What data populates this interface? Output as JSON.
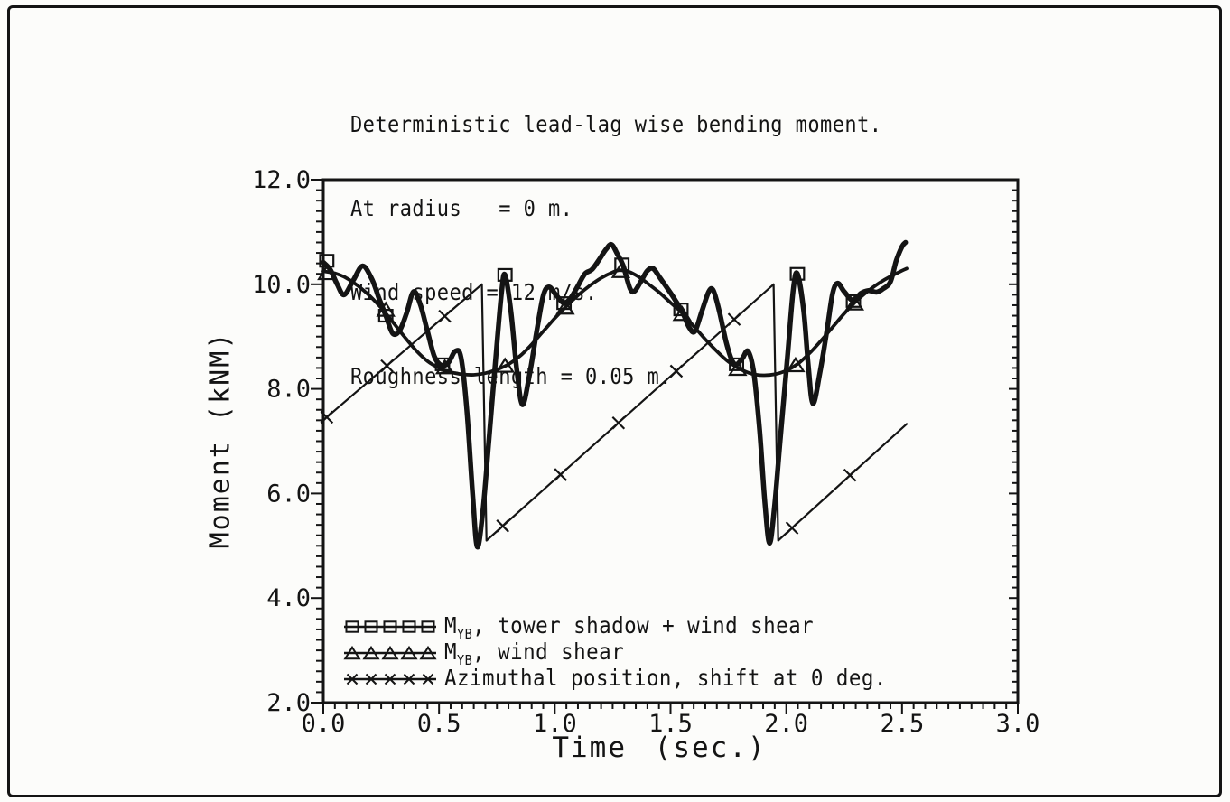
{
  "figure": {
    "ink_color": "#141414",
    "background": "#fcfcfa",
    "title_lines": [
      "Deterministic lead-lag wise bending moment.",
      "At radius   = 0 m.",
      "Wind speed = 12 m/s.",
      "Roughness length = 0.05 m."
    ]
  },
  "legend": {
    "entries": [
      {
        "marker": "square",
        "prefix": "M",
        "sub": "YB",
        "rest": ", tower shadow + wind shear"
      },
      {
        "marker": "triangle",
        "prefix": "M",
        "sub": "YB",
        "rest": ", wind shear"
      },
      {
        "marker": "x",
        "prefix": "",
        "sub": "",
        "rest": "Azimuthal position, shift at 0 deg."
      }
    ]
  },
  "chart_data": {
    "type": "line",
    "title": "Deterministic lead-lag wise bending moment.",
    "xlabel": "Time (sec.)",
    "ylabel": "Moment (kNM)",
    "xlim": [
      0.0,
      3.0
    ],
    "ylim": [
      2.0,
      12.0
    ],
    "x_major_ticks": [
      "0.0",
      "0.5",
      "1.0",
      "1.5",
      "2.0",
      "2.5",
      "3.0"
    ],
    "x_minor_step": 0.05,
    "y_major_ticks": [
      "2.0",
      "4.0",
      "6.0",
      "8.0",
      "10.0",
      "12.0"
    ],
    "y_minor_step": 0.2,
    "grid": false,
    "legend_position": "inside-bottom-left",
    "series": [
      {
        "id": "tower-shadow-wind-shear",
        "name": "MYB, tower shadow + wind shear",
        "marker": "square",
        "smooth": true,
        "line_width": 5.5,
        "points": [
          [
            0.0,
            10.42
          ],
          [
            0.03,
            10.28
          ],
          [
            0.06,
            10.0
          ],
          [
            0.09,
            9.8
          ],
          [
            0.13,
            10.08
          ],
          [
            0.17,
            10.35
          ],
          [
            0.21,
            10.1
          ],
          [
            0.24,
            9.74
          ],
          [
            0.27,
            9.4
          ],
          [
            0.3,
            9.06
          ],
          [
            0.33,
            9.12
          ],
          [
            0.36,
            9.45
          ],
          [
            0.39,
            9.86
          ],
          [
            0.42,
            9.6
          ],
          [
            0.45,
            9.1
          ],
          [
            0.48,
            8.62
          ],
          [
            0.51,
            8.45
          ],
          [
            0.54,
            8.5
          ],
          [
            0.57,
            8.72
          ],
          [
            0.595,
            8.6
          ],
          [
            0.62,
            7.6
          ],
          [
            0.645,
            6.0
          ],
          [
            0.665,
            4.98
          ],
          [
            0.69,
            5.7
          ],
          [
            0.715,
            7.0
          ],
          [
            0.745,
            8.6
          ],
          [
            0.77,
            9.85
          ],
          [
            0.785,
            10.18
          ],
          [
            0.81,
            9.5
          ],
          [
            0.835,
            8.4
          ],
          [
            0.86,
            7.7
          ],
          [
            0.89,
            8.25
          ],
          [
            0.92,
            9.05
          ],
          [
            0.95,
            9.78
          ],
          [
            0.975,
            9.95
          ],
          [
            1.005,
            9.8
          ],
          [
            1.04,
            9.64
          ],
          [
            1.07,
            9.75
          ],
          [
            1.1,
            9.97
          ],
          [
            1.13,
            10.2
          ],
          [
            1.16,
            10.28
          ],
          [
            1.19,
            10.46
          ],
          [
            1.22,
            10.66
          ],
          [
            1.245,
            10.76
          ],
          [
            1.27,
            10.58
          ],
          [
            1.295,
            10.36
          ],
          [
            1.325,
            9.92
          ],
          [
            1.345,
            9.87
          ],
          [
            1.375,
            10.08
          ],
          [
            1.4,
            10.26
          ],
          [
            1.425,
            10.3
          ],
          [
            1.455,
            10.12
          ],
          [
            1.49,
            9.9
          ],
          [
            1.52,
            9.7
          ],
          [
            1.55,
            9.48
          ],
          [
            1.58,
            9.18
          ],
          [
            1.605,
            9.1
          ],
          [
            1.635,
            9.48
          ],
          [
            1.665,
            9.86
          ],
          [
            1.685,
            9.88
          ],
          [
            1.71,
            9.5
          ],
          [
            1.74,
            8.9
          ],
          [
            1.765,
            8.55
          ],
          [
            1.785,
            8.47
          ],
          [
            1.81,
            8.58
          ],
          [
            1.835,
            8.72
          ],
          [
            1.86,
            8.3
          ],
          [
            1.885,
            7.2
          ],
          [
            1.908,
            5.8
          ],
          [
            1.928,
            5.05
          ],
          [
            1.95,
            5.8
          ],
          [
            1.975,
            7.1
          ],
          [
            2.005,
            8.6
          ],
          [
            2.03,
            9.9
          ],
          [
            2.048,
            10.2
          ],
          [
            2.075,
            9.5
          ],
          [
            2.095,
            8.45
          ],
          [
            2.115,
            7.72
          ],
          [
            2.145,
            8.3
          ],
          [
            2.175,
            9.1
          ],
          [
            2.2,
            9.82
          ],
          [
            2.222,
            10.02
          ],
          [
            2.25,
            9.86
          ],
          [
            2.29,
            9.68
          ],
          [
            2.32,
            9.82
          ],
          [
            2.355,
            9.88
          ],
          [
            2.39,
            9.85
          ],
          [
            2.42,
            9.92
          ],
          [
            2.45,
            10.05
          ],
          [
            2.475,
            10.45
          ],
          [
            2.5,
            10.72
          ],
          [
            2.515,
            10.8
          ]
        ],
        "marker_points": [
          [
            0.015,
            10.45
          ],
          [
            0.27,
            9.4
          ],
          [
            0.515,
            8.47
          ],
          [
            0.785,
            10.18
          ],
          [
            1.04,
            9.64
          ],
          [
            1.29,
            10.38
          ],
          [
            1.545,
            9.52
          ],
          [
            1.785,
            8.47
          ],
          [
            2.048,
            10.2
          ],
          [
            2.29,
            9.68
          ]
        ]
      },
      {
        "id": "wind-shear",
        "name": "MYB, wind shear",
        "marker": "triangle",
        "smooth": true,
        "line_width": 3.8,
        "points": [
          [
            0.0,
            10.25
          ],
          [
            0.05,
            10.21
          ],
          [
            0.1,
            10.12
          ],
          [
            0.15,
            9.97
          ],
          [
            0.2,
            9.78
          ],
          [
            0.25,
            9.55
          ],
          [
            0.3,
            9.28
          ],
          [
            0.35,
            9.0
          ],
          [
            0.4,
            8.74
          ],
          [
            0.45,
            8.53
          ],
          [
            0.5,
            8.4
          ],
          [
            0.55,
            8.32
          ],
          [
            0.6,
            8.28
          ],
          [
            0.65,
            8.27
          ],
          [
            0.7,
            8.3
          ],
          [
            0.75,
            8.37
          ],
          [
            0.8,
            8.47
          ],
          [
            0.85,
            8.63
          ],
          [
            0.9,
            8.85
          ],
          [
            0.95,
            9.1
          ],
          [
            1.0,
            9.35
          ],
          [
            1.05,
            9.58
          ],
          [
            1.1,
            9.79
          ],
          [
            1.15,
            9.97
          ],
          [
            1.2,
            10.12
          ],
          [
            1.25,
            10.23
          ],
          [
            1.28,
            10.27
          ],
          [
            1.32,
            10.24
          ],
          [
            1.36,
            10.15
          ],
          [
            1.4,
            10.02
          ],
          [
            1.45,
            9.85
          ],
          [
            1.5,
            9.65
          ],
          [
            1.55,
            9.45
          ],
          [
            1.6,
            9.2
          ],
          [
            1.65,
            8.95
          ],
          [
            1.7,
            8.72
          ],
          [
            1.75,
            8.52
          ],
          [
            1.8,
            8.38
          ],
          [
            1.85,
            8.29
          ],
          [
            1.9,
            8.26
          ],
          [
            1.95,
            8.28
          ],
          [
            2.0,
            8.35
          ],
          [
            2.05,
            8.48
          ],
          [
            2.1,
            8.68
          ],
          [
            2.15,
            8.92
          ],
          [
            2.2,
            9.18
          ],
          [
            2.25,
            9.44
          ],
          [
            2.3,
            9.67
          ],
          [
            2.35,
            9.86
          ],
          [
            2.4,
            10.02
          ],
          [
            2.45,
            10.15
          ],
          [
            2.5,
            10.26
          ],
          [
            2.52,
            10.3
          ]
        ],
        "marker_points": [
          [
            0.015,
            10.22
          ],
          [
            0.27,
            9.52
          ],
          [
            0.525,
            8.42
          ],
          [
            0.785,
            8.45
          ],
          [
            1.045,
            9.56
          ],
          [
            1.285,
            10.26
          ],
          [
            1.55,
            9.44
          ],
          [
            1.79,
            8.39
          ],
          [
            2.04,
            8.46
          ],
          [
            2.295,
            9.64
          ]
        ]
      },
      {
        "id": "azimuthal-position",
        "name": "Azimuthal position, shift at 0 deg.",
        "marker": "x",
        "smooth": false,
        "line_width": 2.2,
        "points": [
          [
            0.0,
            7.4
          ],
          [
            0.685,
            10.0
          ],
          [
            0.705,
            5.1
          ],
          [
            1.945,
            10.0
          ],
          [
            1.965,
            5.1
          ],
          [
            2.52,
            7.33
          ]
        ],
        "marker_points": [
          [
            0.015,
            7.46
          ],
          [
            0.275,
            8.44
          ],
          [
            0.525,
            9.39
          ],
          [
            0.775,
            5.38
          ],
          [
            1.025,
            6.36
          ],
          [
            1.275,
            7.35
          ],
          [
            1.525,
            8.34
          ],
          [
            1.775,
            9.33
          ],
          [
            2.025,
            5.34
          ],
          [
            2.275,
            6.35
          ]
        ]
      }
    ]
  }
}
